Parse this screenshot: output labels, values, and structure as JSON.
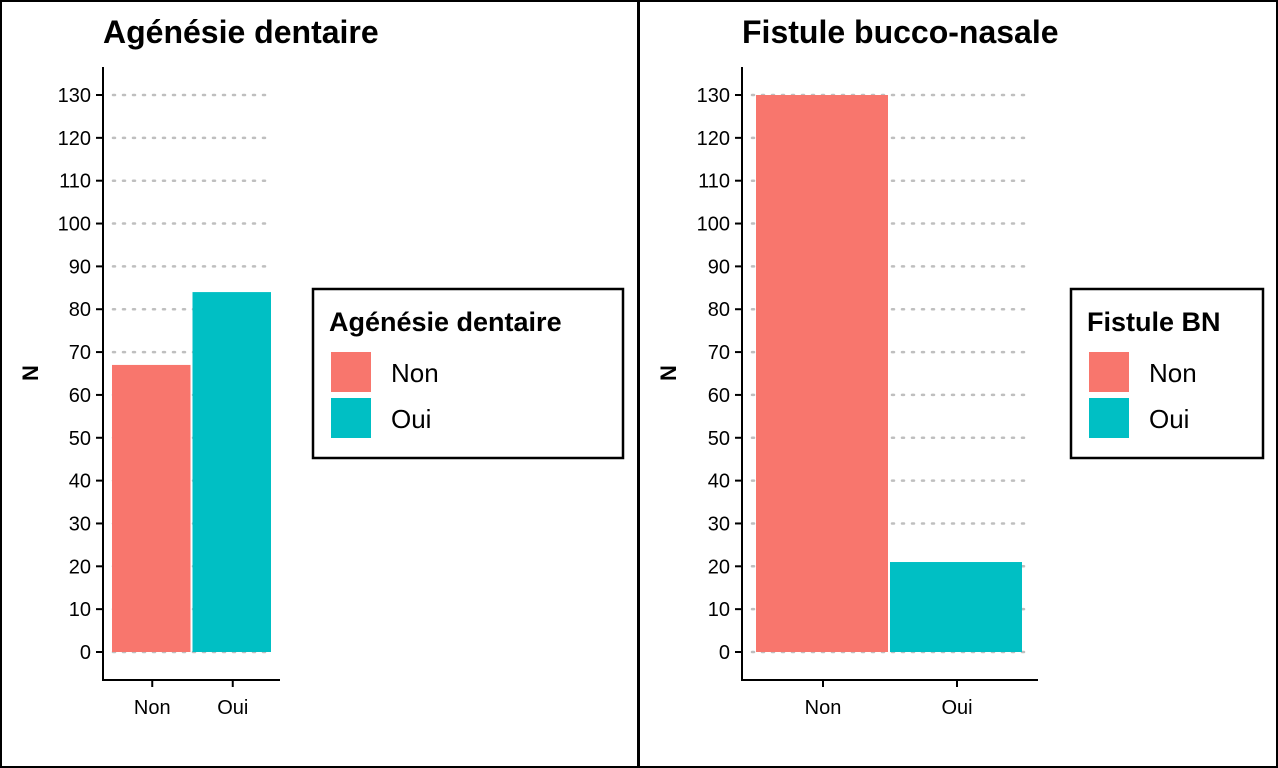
{
  "chart_data": [
    {
      "type": "bar",
      "title": "Agénésie dentaire",
      "ylabel": "N",
      "xlabel": "",
      "categories": [
        "Non",
        "Oui"
      ],
      "values": [
        67,
        84
      ],
      "ylim": [
        -6,
        137
      ],
      "yticks": [
        0,
        10,
        20,
        30,
        40,
        50,
        60,
        70,
        80,
        90,
        100,
        110,
        120,
        130
      ],
      "grid": "horizontal-dotted",
      "legend": {
        "title": "Agénésie dentaire",
        "placement": "right",
        "entries": [
          {
            "label": "Non",
            "color": "#F8766D"
          },
          {
            "label": "Oui",
            "color": "#00BFC4"
          }
        ]
      }
    },
    {
      "type": "bar",
      "title": "Fistule bucco-nasale",
      "ylabel": "N",
      "xlabel": "",
      "categories": [
        "Non",
        "Oui"
      ],
      "values": [
        130,
        21
      ],
      "ylim": [
        -6,
        137
      ],
      "yticks": [
        0,
        10,
        20,
        30,
        40,
        50,
        60,
        70,
        80,
        90,
        100,
        110,
        120,
        130
      ],
      "grid": "horizontal-dotted",
      "legend": {
        "title": "Fistule BN",
        "placement": "right",
        "entries": [
          {
            "label": "Non",
            "color": "#F8766D"
          },
          {
            "label": "Oui",
            "color": "#00BFC4"
          }
        ]
      }
    }
  ]
}
